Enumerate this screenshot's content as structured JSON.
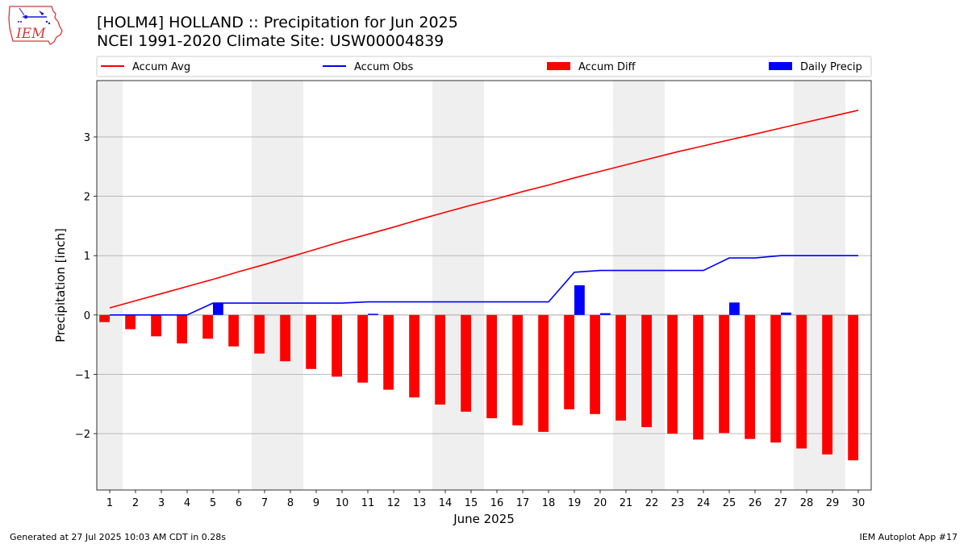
{
  "header": {
    "title_line1": "[HOLM4] HOLLAND :: Precipitation for Jun 2025",
    "title_line2": "NCEI 1991-2020 Climate Site: USW00004839",
    "logo_text": "IEM"
  },
  "footer": {
    "generated": "Generated at 27 Jul 2025 10:03 AM CDT in 0.28s",
    "app": "IEM Autoplot App #17"
  },
  "colors": {
    "avg": "#ff0000",
    "obs": "#0000ff",
    "diff": "#ff0000",
    "daily": "#0000ff",
    "weekend": "#efefef",
    "grid": "#b0b0b0"
  },
  "chart_data": {
    "type": "bar",
    "xlabel": "June 2025",
    "ylabel": "Precipitation [inch]",
    "xlim": [
      0.5,
      30.5
    ],
    "ylim": [
      -2.95,
      3.95
    ],
    "yticks": [
      -2,
      -1,
      0,
      1,
      2,
      3
    ],
    "ytick_labels": [
      "−2",
      "−1",
      "0",
      "1",
      "2",
      "3"
    ],
    "days": [
      "1",
      "2",
      "3",
      "4",
      "5",
      "6",
      "7",
      "8",
      "9",
      "10",
      "11",
      "12",
      "13",
      "14",
      "15",
      "16",
      "17",
      "18",
      "19",
      "20",
      "21",
      "22",
      "23",
      "24",
      "25",
      "26",
      "27",
      "28",
      "29",
      "30"
    ],
    "weekend_days": [
      1,
      7,
      8,
      14,
      15,
      21,
      22,
      28,
      29
    ],
    "legend": [
      "Accum Avg",
      "Accum Obs",
      "Accum Diff",
      "Daily Precip"
    ],
    "legend_position": "top",
    "grid": "horizontal",
    "series": [
      {
        "name": "Accum Avg",
        "kind": "line",
        "values": [
          0.12,
          0.24,
          0.36,
          0.48,
          0.6,
          0.73,
          0.85,
          0.98,
          1.11,
          1.24,
          1.36,
          1.48,
          1.61,
          1.73,
          1.85,
          1.96,
          2.08,
          2.19,
          2.31,
          2.42,
          2.53,
          2.64,
          2.75,
          2.85,
          2.95,
          3.05,
          3.15,
          3.25,
          3.35,
          3.45
        ]
      },
      {
        "name": "Accum Obs",
        "kind": "line",
        "values": [
          0,
          0,
          0,
          0,
          0.2,
          0.2,
          0.2,
          0.2,
          0.2,
          0.2,
          0.22,
          0.22,
          0.22,
          0.22,
          0.22,
          0.22,
          0.22,
          0.22,
          0.72,
          0.75,
          0.75,
          0.75,
          0.75,
          0.75,
          0.96,
          0.96,
          1.0,
          1.0,
          1.0,
          1.0
        ]
      },
      {
        "name": "Accum Diff",
        "kind": "bar",
        "values": [
          -0.12,
          -0.24,
          -0.36,
          -0.48,
          -0.4,
          -0.53,
          -0.65,
          -0.78,
          -0.91,
          -1.04,
          -1.14,
          -1.26,
          -1.39,
          -1.51,
          -1.63,
          -1.74,
          -1.86,
          -1.97,
          -1.59,
          -1.67,
          -1.78,
          -1.89,
          -2.0,
          -2.1,
          -1.99,
          -2.09,
          -2.15,
          -2.25,
          -2.35,
          -2.45
        ]
      },
      {
        "name": "Daily Precip",
        "kind": "bar",
        "values": [
          0,
          0,
          0,
          0,
          0.2,
          0,
          0,
          0,
          0,
          0,
          0.02,
          0,
          0,
          0,
          0,
          0,
          0,
          0,
          0.5,
          0.03,
          0,
          0,
          0,
          0,
          0.21,
          0,
          0.04,
          0,
          0,
          0
        ]
      }
    ]
  }
}
